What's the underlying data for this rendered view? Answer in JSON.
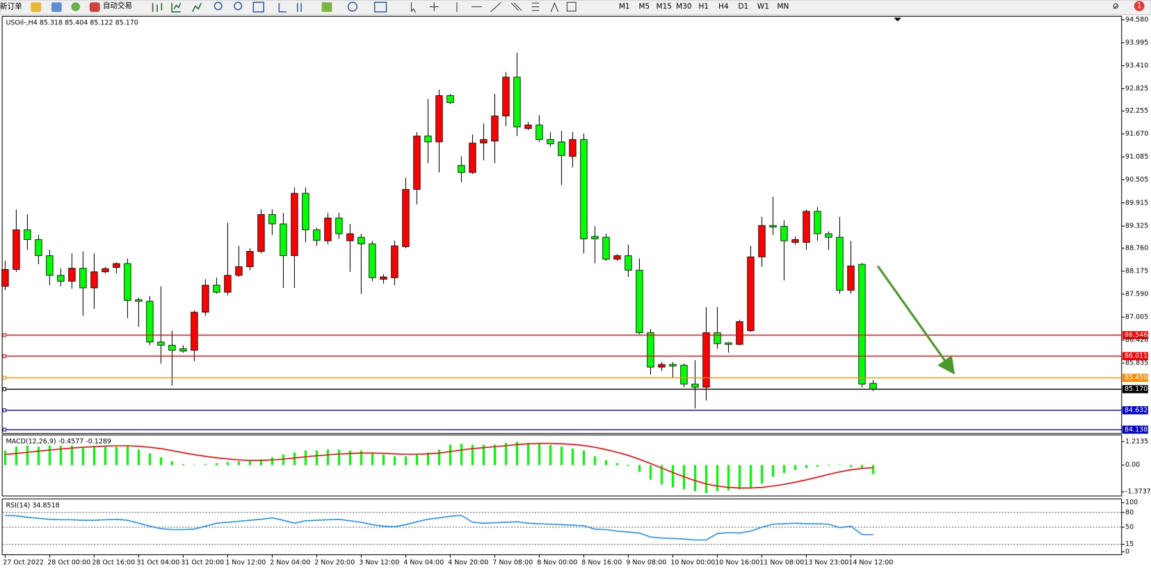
{
  "toolbar": {
    "new_order": "新订单",
    "auto_trading": "自动交易",
    "timeframes": [
      "M1",
      "M5",
      "M15",
      "M30",
      "H1",
      "H4",
      "D1",
      "W1",
      "MN"
    ],
    "alerts_badge": "1"
  },
  "chart_data": [
    {
      "type": "candlestick",
      "title": "USOil-,H4  85.318 85.404 85.122 85.170",
      "categories": [
        "27 Oct 2022",
        null,
        null,
        null,
        "28 Oct 00:00",
        null,
        null,
        null,
        "28 Oct 16:00",
        null,
        null,
        null,
        "31 Oct 04:00",
        null,
        null,
        null,
        "31 Oct 20:00",
        null,
        null,
        null,
        "1 Nov 12:00",
        null,
        null,
        null,
        "2 Nov 04:00",
        null,
        null,
        null,
        "2 Nov 20:00",
        null,
        null,
        null,
        "3 Nov 12:00",
        null,
        null,
        null,
        "4 Nov 04:00",
        null,
        null,
        null,
        "4 Nov 20:00",
        null,
        null,
        null,
        "7 Nov 08:00",
        null,
        null,
        null,
        "8 Nov 00:00",
        null,
        null,
        null,
        "8 Nov 16:00",
        null,
        null,
        null,
        "9 Nov 08:00",
        null,
        null,
        null,
        "10 Nov 00:00",
        null,
        null,
        null,
        "10 Nov 16:00",
        null,
        null,
        null,
        "11 Nov 08:00",
        null,
        null,
        null,
        "13 Nov 23:00",
        null,
        null,
        null,
        "14 Nov 12:00",
        null,
        null
      ],
      "open": [
        87.79,
        88.22,
        89.23,
        88.98,
        88.57,
        88.07,
        87.92,
        88.25,
        87.75,
        88.16,
        88.27,
        88.37,
        87.45,
        87.41,
        86.37,
        86.29,
        86.2,
        86.16,
        87.13,
        87.82,
        87.64,
        88.07,
        88.29,
        88.68,
        89.62,
        89.38,
        88.57,
        90.16,
        89.23,
        88.95,
        89.53,
        88.95,
        89.04,
        88.87,
        87.97,
        88.01,
        88.8,
        90.26,
        91.62,
        91.47,
        92.65,
        90.87,
        90.69,
        91.44,
        91.49,
        92.13,
        93.12,
        91.81,
        91.9,
        91.53,
        91.47,
        91.1,
        91.53,
        89.06,
        89.04,
        88.48,
        88.57,
        88.2,
        86.61,
        85.73,
        85.8,
        85.78,
        85.3,
        85.22,
        86.61,
        86.35,
        86.31,
        86.66,
        88.54,
        89.34,
        89.32,
        88.91,
        88.91,
        89.7,
        89.13,
        89.04,
        87.69,
        88.35,
        85.318
      ],
      "high": [
        88.44,
        89.75,
        89.62,
        89.1,
        88.72,
        88.25,
        88.63,
        88.68,
        88.63,
        88.29,
        88.4,
        88.5,
        87.5,
        87.54,
        87.79,
        86.66,
        86.29,
        87.17,
        87.97,
        88.01,
        89.41,
        88.82,
        88.76,
        89.75,
        89.75,
        89.66,
        90.31,
        90.31,
        89.28,
        89.66,
        89.66,
        89.38,
        89.13,
        88.95,
        88.1,
        88.95,
        90.56,
        91.72,
        92.56,
        92.8,
        92.69,
        91.1,
        91.66,
        91.94,
        92.69,
        93.25,
        93.74,
        91.98,
        92.15,
        91.72,
        91.75,
        91.72,
        91.68,
        89.32,
        89.13,
        88.61,
        88.85,
        88.5,
        86.7,
        85.86,
        85.86,
        85.82,
        85.91,
        87.26,
        87.26,
        86.37,
        86.94,
        88.82,
        89.56,
        90.07,
        89.47,
        89.06,
        89.75,
        89.81,
        89.19,
        89.56,
        88.95,
        88.38,
        85.404
      ],
      "low": [
        87.69,
        88.16,
        88.72,
        88.35,
        87.82,
        87.79,
        87.73,
        87.04,
        87.22,
        88.12,
        88.12,
        86.98,
        86.76,
        86.29,
        85.82,
        85.26,
        86.1,
        85.88,
        87.04,
        87.6,
        87.56,
        88.03,
        88.2,
        88.63,
        89.1,
        87.75,
        87.75,
        88.91,
        88.82,
        88.87,
        89.0,
        88.16,
        87.6,
        87.92,
        87.86,
        87.82,
        88.76,
        89.88,
        90.93,
        90.69,
        92.43,
        90.44,
        90.65,
        91.0,
        90.93,
        91.87,
        91.62,
        91.77,
        91.47,
        91.34,
        90.37,
        90.82,
        88.63,
        88.38,
        88.44,
        88.44,
        88.03,
        86.57,
        85.54,
        85.63,
        85.45,
        85.22,
        84.68,
        84.88,
        86.2,
        86.1,
        86.29,
        86.63,
        88.29,
        89.1,
        87.94,
        88.85,
        88.72,
        88.95,
        88.72,
        87.6,
        87.6,
        85.22,
        85.122
      ],
      "close": [
        88.22,
        89.23,
        88.98,
        88.57,
        88.07,
        87.92,
        88.25,
        87.75,
        88.16,
        88.24,
        88.37,
        87.43,
        87.41,
        86.37,
        86.29,
        86.16,
        86.14,
        87.13,
        87.82,
        87.64,
        88.07,
        88.29,
        88.68,
        89.62,
        89.38,
        88.57,
        90.16,
        89.23,
        88.96,
        89.53,
        89.13,
        89.13,
        88.87,
        88.01,
        88.03,
        88.82,
        90.26,
        91.62,
        91.47,
        92.65,
        92.47,
        90.69,
        91.44,
        91.53,
        92.13,
        93.12,
        91.85,
        91.9,
        91.53,
        91.42,
        91.12,
        91.53,
        89.0,
        89.0,
        88.48,
        88.57,
        88.2,
        86.61,
        85.73,
        85.8,
        85.76,
        85.3,
        85.22,
        86.61,
        86.33,
        86.31,
        86.89,
        88.54,
        89.34,
        89.3,
        88.95,
        88.98,
        89.7,
        89.13,
        89.04,
        87.69,
        88.31,
        85.3,
        85.17
      ],
      "up_color": "#ff0000",
      "down_color": "#00ff00",
      "ylim": [
        84.04,
        94.67
      ],
      "yticks": [
        {
          "value": 94.58,
          "label": "94.580"
        },
        93.995,
        {
          "value": 93.41,
          "label": "93.410"
        },
        92.825,
        92.255,
        {
          "value": 91.67,
          "label": "91.670"
        },
        91.085,
        90.505,
        89.915,
        89.325,
        {
          "value": 88.76,
          "label": "88.760"
        },
        88.175,
        {
          "value": 87.59,
          "label": "87.590"
        },
        87.005,
        {
          "value": 86.42,
          "label": "86.420"
        },
        85.835
      ],
      "levels": [
        {
          "value": 86.546,
          "color": "#ff0000"
        },
        {
          "value": 86.011,
          "color": "#ff0000"
        },
        {
          "value": 85.459,
          "color": "#ff8c00"
        },
        {
          "value": 85.17,
          "label": "85.170",
          "color": "#000000"
        },
        {
          "value": 84.632,
          "color": "#0000cc"
        },
        {
          "value": 84.138,
          "color": "#0000cc"
        }
      ]
    },
    {
      "type": "macd",
      "title": "MACD(12,26,9) -0.4577 -0.1289",
      "series": [
        {
          "style": "histogram",
          "color": "#00ff00",
          "values": [
            0.75,
            0.95,
            1.0,
            0.95,
            1.0,
            1.0,
            1.0,
            0.95,
            1.0,
            0.95,
            0.95,
            1.0,
            0.8,
            0.6,
            0.4,
            0.2,
            0.05,
            0.02,
            0.05,
            0.1,
            0.15,
            0.2,
            0.25,
            0.3,
            0.4,
            0.55,
            0.65,
            0.75,
            0.75,
            0.8,
            0.8,
            0.75,
            0.75,
            0.65,
            0.55,
            0.45,
            0.45,
            0.55,
            0.65,
            0.8,
            1.05,
            1.1,
            1.05,
            1.05,
            1.05,
            1.15,
            1.2,
            1.15,
            1.1,
            1.05,
            0.95,
            0.85,
            0.75,
            0.45,
            0.25,
            0.1,
            -0.05,
            -0.35,
            -0.75,
            -1.0,
            -1.15,
            -1.25,
            -1.35,
            -1.45,
            -1.35,
            -1.3,
            -1.25,
            -1.15,
            -0.95,
            -0.6,
            -0.4,
            -0.25,
            -0.15,
            -0.08,
            0.03,
            0.02,
            -0.1,
            -0.15,
            -0.4577
          ]
        },
        {
          "style": "line",
          "color": "#ff0000",
          "values": [
            0.55,
            0.6,
            0.66,
            0.72,
            0.78,
            0.83,
            0.88,
            0.92,
            0.95,
            0.98,
            1.0,
            1.0,
            0.97,
            0.92,
            0.85,
            0.75,
            0.64,
            0.54,
            0.45,
            0.38,
            0.32,
            0.27,
            0.24,
            0.24,
            0.27,
            0.31,
            0.37,
            0.43,
            0.48,
            0.53,
            0.57,
            0.6,
            0.62,
            0.62,
            0.61,
            0.58,
            0.56,
            0.56,
            0.58,
            0.62,
            0.7,
            0.78,
            0.85,
            0.9,
            0.95,
            1.0,
            1.06,
            1.1,
            1.12,
            1.12,
            1.1,
            1.07,
            1.01,
            0.92,
            0.8,
            0.66,
            0.5,
            0.3,
            0.08,
            -0.15,
            -0.38,
            -0.6,
            -0.8,
            -0.97,
            -1.08,
            -1.15,
            -1.18,
            -1.18,
            -1.15,
            -1.08,
            -0.99,
            -0.88,
            -0.76,
            -0.62,
            -0.48,
            -0.35,
            -0.24,
            -0.17,
            -0.1289
          ]
        }
      ],
      "ylim": [
        -1.59,
        1.554
      ],
      "yticks": [
        1.2135,
        {
          "value": 0,
          "label": "0.00"
        },
        -1.3737
      ]
    },
    {
      "type": "line",
      "title": "RSI(14) 34.8518",
      "series": [
        {
          "color": "#1e90ff",
          "values": [
            74,
            73,
            70,
            68,
            66,
            65,
            65,
            64,
            64,
            65,
            66,
            64,
            58,
            52,
            47,
            45,
            45,
            46,
            52,
            58,
            60,
            62,
            64,
            66,
            69,
            64,
            58,
            63,
            64,
            65,
            66,
            63,
            60,
            55,
            52,
            51,
            55,
            61,
            66,
            69,
            72,
            74,
            60,
            58,
            59,
            60,
            61,
            58,
            57,
            56,
            55,
            54,
            53,
            46,
            45,
            42,
            40,
            38,
            30,
            28,
            27,
            26,
            24,
            24,
            37,
            39,
            38,
            42,
            50,
            56,
            57,
            58,
            57,
            57,
            56,
            49,
            52,
            35,
            34.8518
          ]
        }
      ],
      "ylim": [
        -6,
        107.5
      ],
      "yticks": [
        100,
        80,
        50,
        15,
        0
      ],
      "levels": [
        80,
        50,
        15
      ]
    }
  ]
}
